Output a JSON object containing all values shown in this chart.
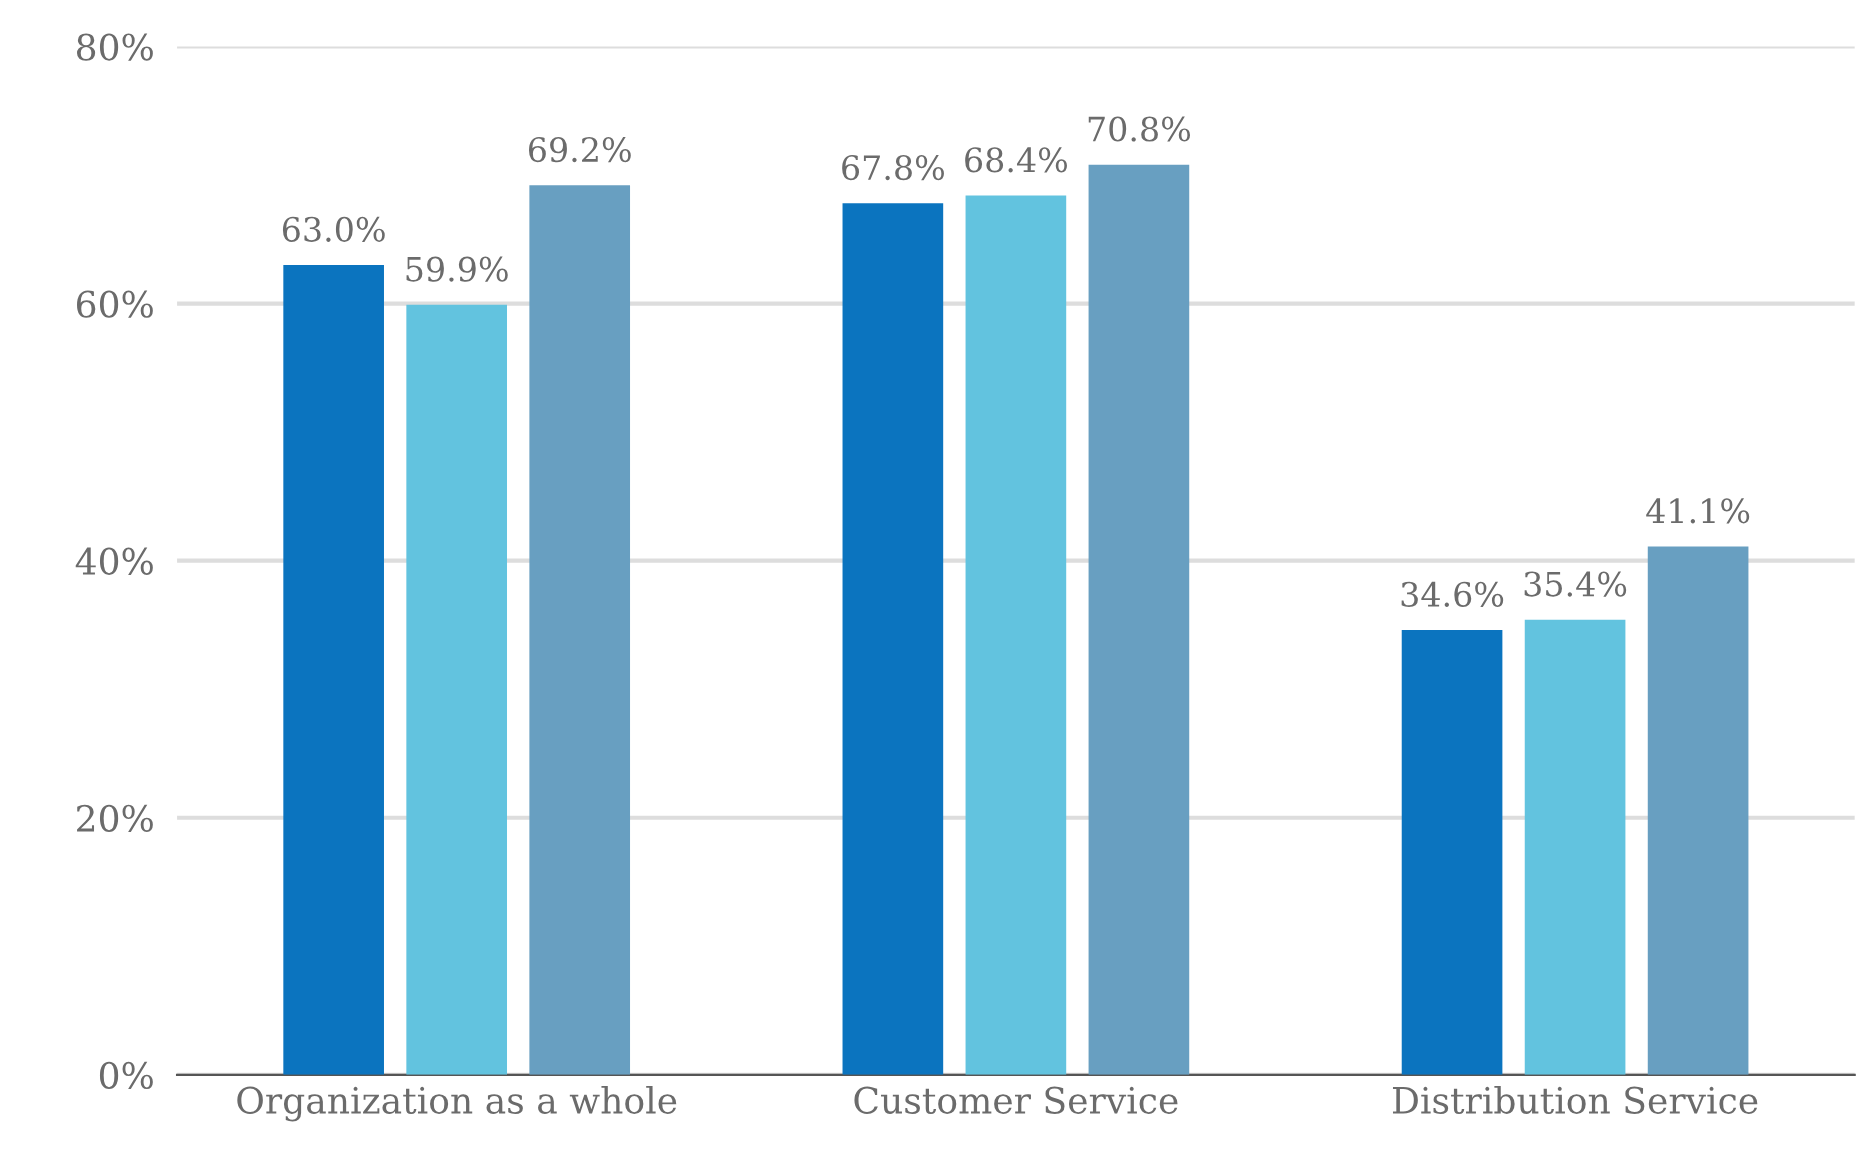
{
  "chart_data": {
    "type": "bar",
    "categories": [
      "Organization as a whole",
      "Customer Service",
      "Distribution Service"
    ],
    "series": [
      {
        "color": "#0b74bf",
        "values": [
          63.0,
          67.8,
          34.6
        ],
        "value_labels": [
          "63.0%",
          "67.8%",
          "34.6%"
        ]
      },
      {
        "color": "#62c3df",
        "values": [
          59.9,
          68.4,
          35.4
        ],
        "value_labels": [
          "59.9%",
          "68.4%",
          "35.4%"
        ]
      },
      {
        "color": "#689fc1",
        "values": [
          69.2,
          70.8,
          41.1
        ],
        "value_labels": [
          "69.2%",
          "70.8%",
          "41.1%"
        ]
      }
    ],
    "ylim": [
      0,
      80
    ],
    "yticks": [
      {
        "value": 0,
        "label": "0%"
      },
      {
        "value": 20,
        "label": "20%"
      },
      {
        "value": 40,
        "label": "40%"
      },
      {
        "value": 60,
        "label": "60%"
      },
      {
        "value": 80,
        "label": "80%"
      }
    ],
    "grid": "y"
  }
}
